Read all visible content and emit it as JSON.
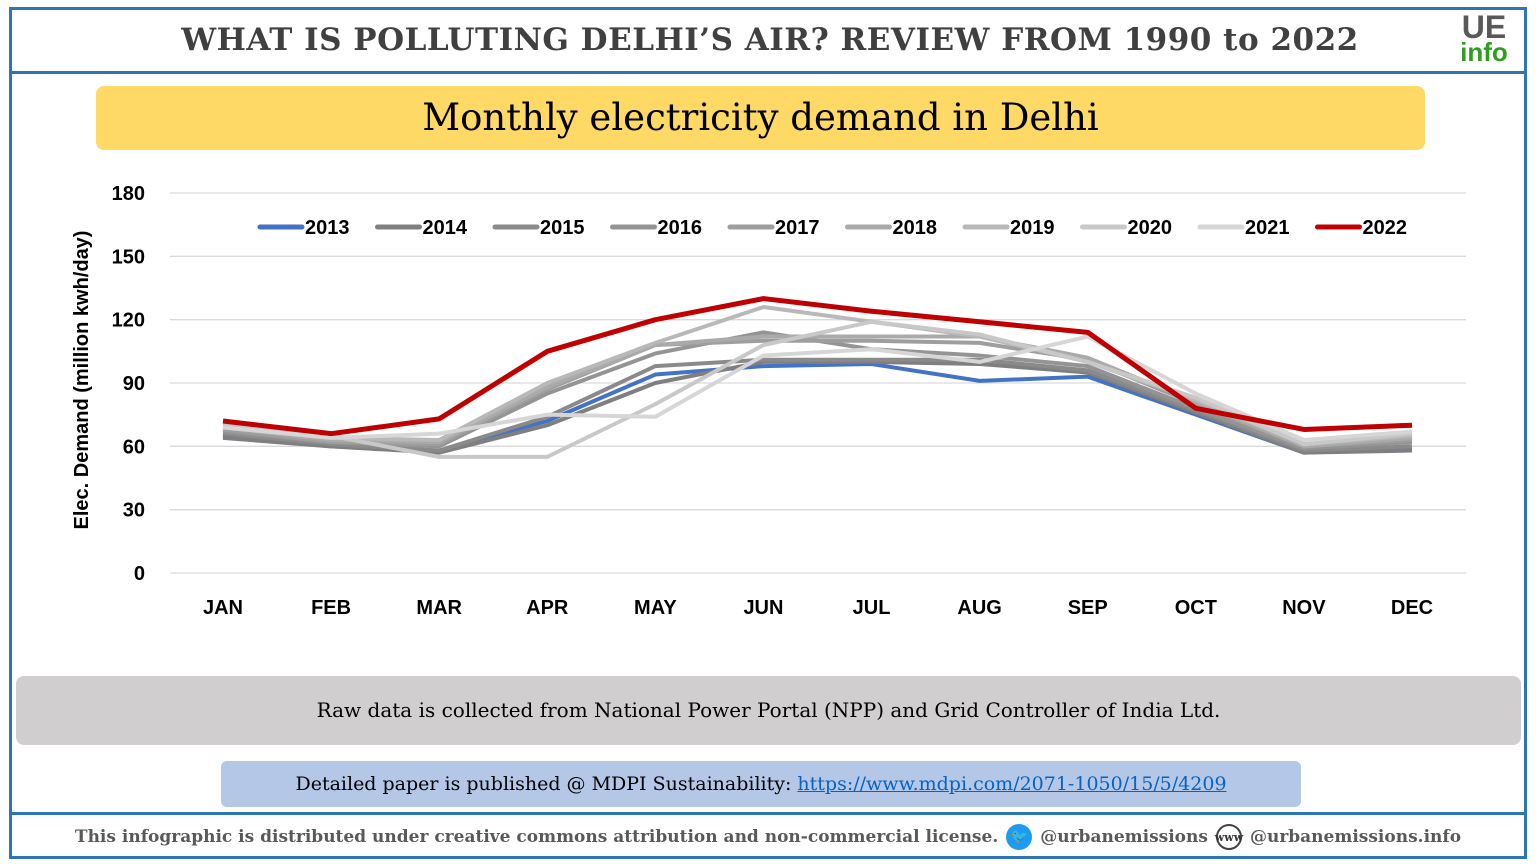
{
  "header": {
    "title": "WHAT IS POLLUTING DELHI’S AIR? REVIEW FROM 1990 to 2022",
    "logo_top": "UE",
    "logo_bottom": "info"
  },
  "chart_data": {
    "type": "line",
    "title": "Monthly electricity demand in Delhi",
    "xlabel": "",
    "ylabel": "Elec. Demand (million kwh/day)",
    "ylim": [
      0,
      180
    ],
    "yticks": [
      0,
      30,
      60,
      90,
      120,
      150,
      180
    ],
    "grid": true,
    "legend_position": "top",
    "categories": [
      "JAN",
      "FEB",
      "MAR",
      "APR",
      "MAY",
      "JUN",
      "JUL",
      "AUG",
      "SEP",
      "OCT",
      "NOV",
      "DEC"
    ],
    "series": [
      {
        "name": "2013",
        "color": "#4472c4",
        "values": [
          65,
          60,
          58,
          72,
          94,
          98,
          99,
          91,
          93,
          75,
          57,
          59
        ]
      },
      {
        "name": "2014",
        "color": "#7f7f7f",
        "values": [
          64,
          60,
          57,
          70,
          90,
          100,
          100,
          99,
          95,
          76,
          57,
          58
        ]
      },
      {
        "name": "2015",
        "color": "#8a8a8a",
        "values": [
          66,
          61,
          58,
          74,
          98,
          101,
          101,
          101,
          96,
          77,
          58,
          60
        ]
      },
      {
        "name": "2016",
        "color": "#949494",
        "values": [
          67,
          62,
          60,
          85,
          104,
          114,
          106,
          103,
          98,
          78,
          59,
          62
        ]
      },
      {
        "name": "2017",
        "color": "#9e9e9e",
        "values": [
          68,
          62,
          61,
          87,
          108,
          110,
          110,
          109,
          101,
          80,
          60,
          63
        ]
      },
      {
        "name": "2018",
        "color": "#aaaaaa",
        "values": [
          69,
          63,
          62,
          88,
          108,
          112,
          112,
          112,
          102,
          81,
          60,
          64
        ]
      },
      {
        "name": "2019",
        "color": "#b8b8b8",
        "values": [
          70,
          64,
          63,
          90,
          109,
          126,
          119,
          112,
          100,
          82,
          61,
          65
        ]
      },
      {
        "name": "2020",
        "color": "#c8c8c8",
        "values": [
          71,
          65,
          55,
          55,
          80,
          108,
          119,
          113,
          100,
          83,
          61,
          66
        ]
      },
      {
        "name": "2021",
        "color": "#d6d6d6",
        "values": [
          69,
          64,
          66,
          75,
          74,
          103,
          106,
          100,
          112,
          85,
          63,
          67
        ]
      },
      {
        "name": "2022",
        "color": "#c00000",
        "values": [
          72,
          66,
          73,
          105,
          120,
          130,
          124,
          119,
          114,
          78,
          68,
          70
        ]
      }
    ]
  },
  "note": "Raw data is collected from National Power Portal (NPP) and Grid Controller of India Ltd.",
  "paper": {
    "text": "Detailed paper is published @ MDPI Sustainability: ",
    "link": "https://www.mdpi.com/2071-1050/15/5/4209"
  },
  "footer": {
    "license": "This infographic is distributed under creative commons attribution and non-commercial license.",
    "twitter": "@urbanemissions",
    "website": "@urbanemissions.info",
    "www_label": "www"
  }
}
